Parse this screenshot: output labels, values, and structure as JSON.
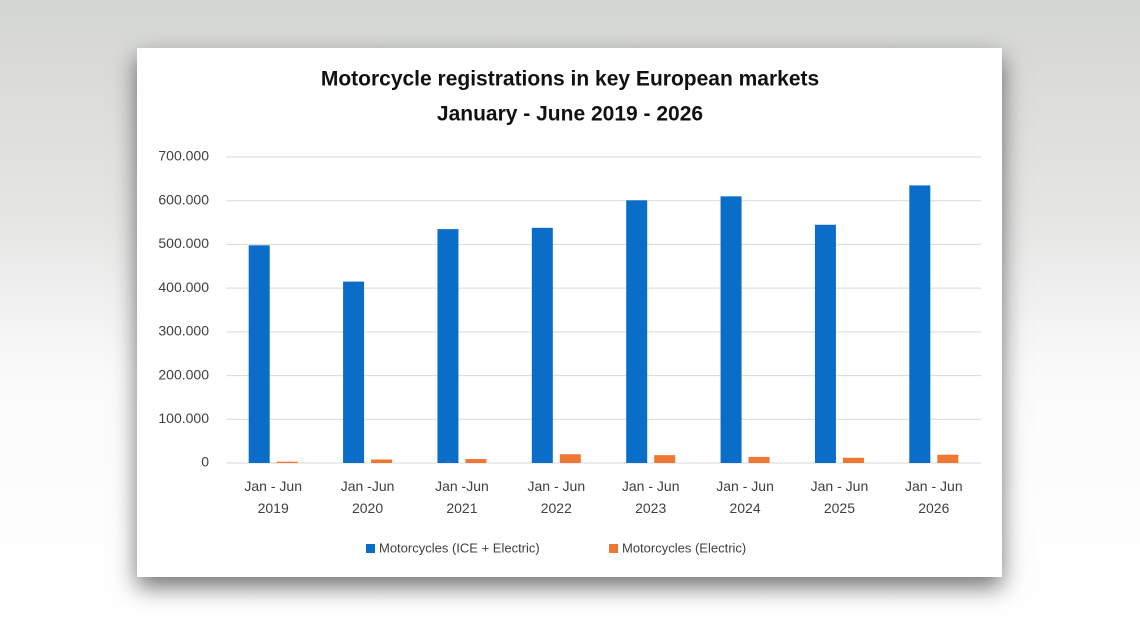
{
  "chart_data": {
    "type": "bar",
    "title": "Motorcycle registrations in key European markets",
    "subtitle": "January - June 2019 - 2026",
    "categories": [
      "Jan - Jun\n2019",
      "Jan -Jun\n2020",
      "Jan -Jun\n2021",
      "Jan - Jun\n2022",
      "Jan - Jun\n2023",
      "Jan - Jun\n2024",
      "Jan - Jun\n2025",
      "Jan - Jun\n2026"
    ],
    "series": [
      {
        "name": "Motorcycles (ICE + Electric)",
        "color": "#0a6ec8",
        "values": [
          498000,
          415000,
          535000,
          538000,
          601000,
          610000,
          545000,
          635000
        ]
      },
      {
        "name": "Motorcycles (Electric)",
        "color": "#ee7733",
        "values": [
          3000,
          8000,
          9000,
          20000,
          18000,
          14000,
          12000,
          19000
        ]
      }
    ],
    "ylim": [
      0,
      700000
    ],
    "yticks": [
      0,
      {
        "value": 100000,
        "label": "100.000"
      },
      {
        "value": 200000,
        "label": "200.000"
      },
      {
        "value": 300000,
        "label": "300.000"
      },
      {
        "value": 400000,
        "label": "400.000"
      },
      {
        "value": 500000,
        "label": "500.000"
      },
      {
        "value": 600000,
        "label": "600.000"
      },
      {
        "value": 700000,
        "label": "700.000"
      }
    ],
    "grid": true,
    "legend": "bottom"
  }
}
